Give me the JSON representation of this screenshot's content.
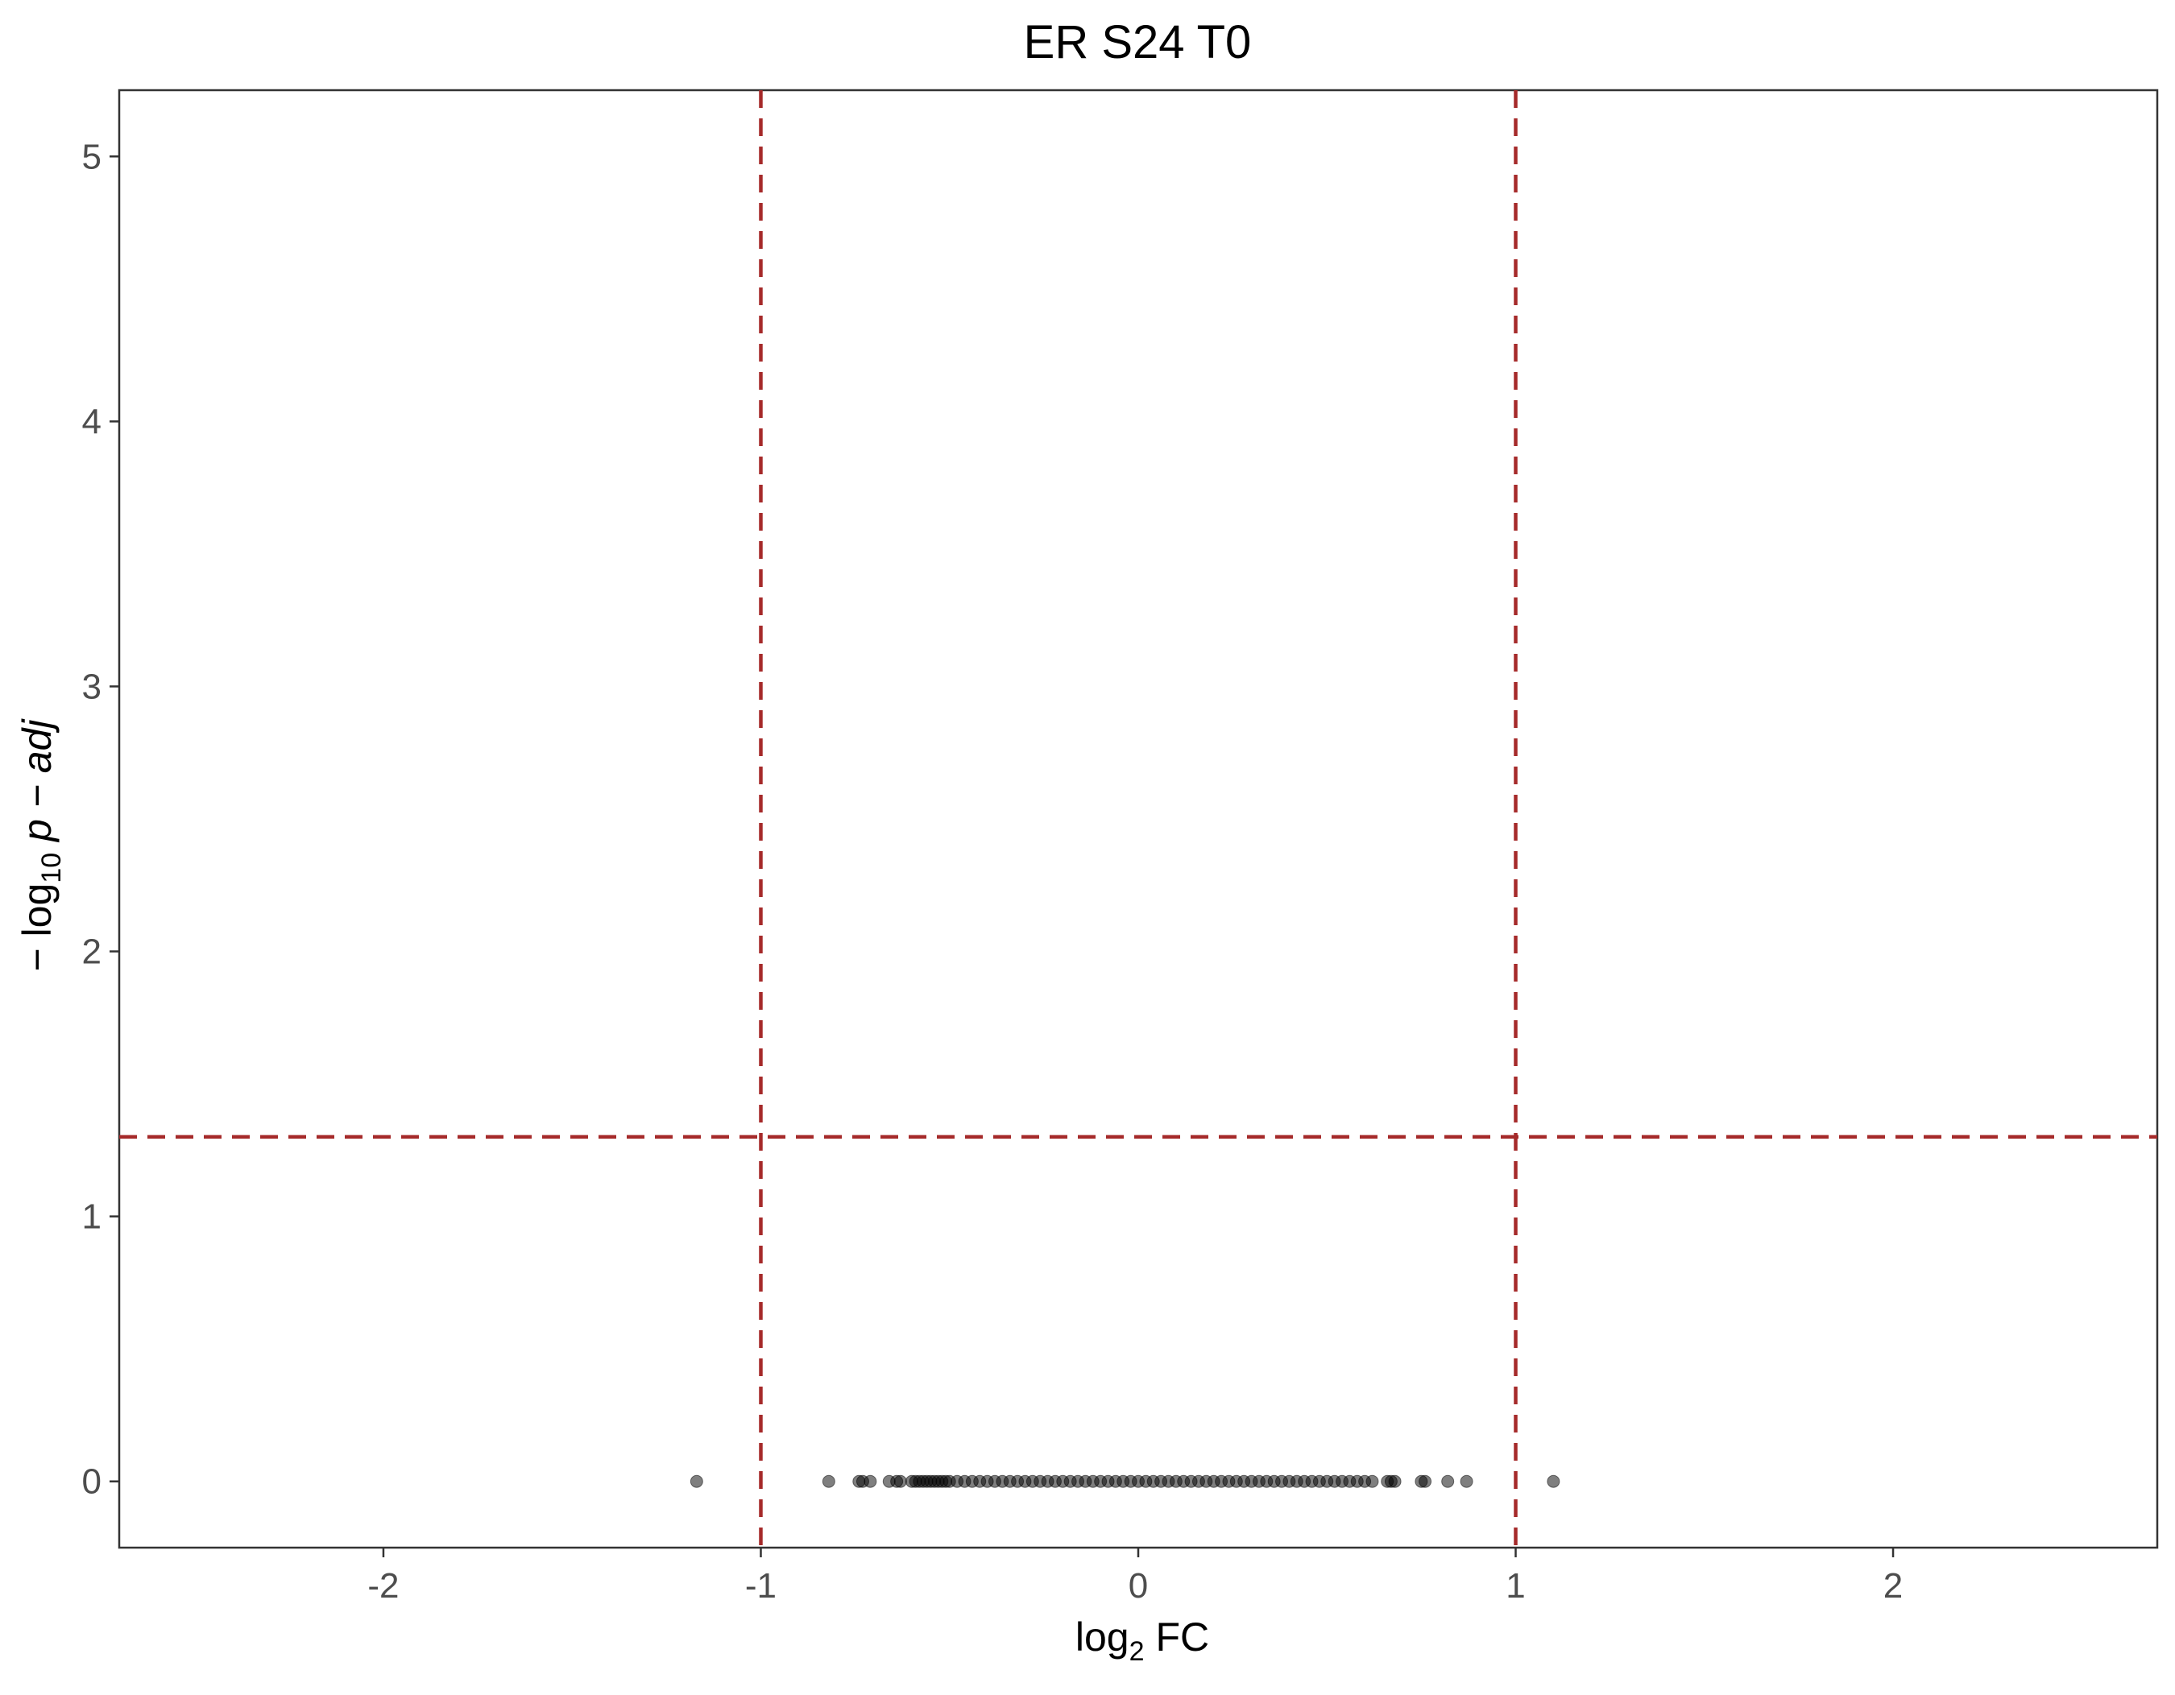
{
  "chart_data": {
    "type": "scatter",
    "title": "ER S24 T0",
    "xlabel": {
      "base": "log",
      "subscript": "2",
      "suffix": " FC"
    },
    "ylabel": {
      "prefix": "− log",
      "subscript": "10",
      "italic": " p − adj"
    },
    "xlim": [
      -2.7,
      2.7
    ],
    "ylim": [
      -0.25,
      5.25
    ],
    "x_ticks": [
      -2,
      -1,
      0,
      1,
      2
    ],
    "x_tick_labels": [
      "-2",
      "-1",
      "0",
      "1",
      "2"
    ],
    "y_ticks": [
      0,
      1,
      2,
      3,
      4,
      5
    ],
    "y_tick_labels": [
      "0",
      "1",
      "2",
      "3",
      "4",
      "5"
    ],
    "grid": false,
    "thresholds": {
      "log2fc": [
        -1,
        1
      ],
      "neg_log10_padj": 1.3,
      "color": "#a52a2a",
      "style": "dashed"
    },
    "point_color": "#000000",
    "point_alpha": 0.5,
    "series": [
      {
        "points": [
          {
            "x": -1.17,
            "y": 0
          },
          {
            "x": -0.82,
            "y": 0
          },
          {
            "x": -0.74,
            "y": 0
          },
          {
            "x": -0.73,
            "y": 0
          },
          {
            "x": -0.71,
            "y": 0
          },
          {
            "x": -0.66,
            "y": 0
          },
          {
            "x": -0.64,
            "y": 0
          },
          {
            "x": -0.63,
            "y": 0
          },
          {
            "x": -0.6,
            "y": 0
          },
          {
            "x": -0.59,
            "y": 0
          },
          {
            "x": -0.58,
            "y": 0
          },
          {
            "x": -0.57,
            "y": 0
          },
          {
            "x": -0.56,
            "y": 0
          },
          {
            "x": -0.55,
            "y": 0
          },
          {
            "x": -0.54,
            "y": 0
          },
          {
            "x": -0.53,
            "y": 0
          },
          {
            "x": -0.52,
            "y": 0
          },
          {
            "x": -0.51,
            "y": 0
          },
          {
            "x": -0.5,
            "y": 0
          },
          {
            "x": -0.48,
            "y": 0
          },
          {
            "x": -0.46,
            "y": 0
          },
          {
            "x": -0.44,
            "y": 0
          },
          {
            "x": -0.42,
            "y": 0
          },
          {
            "x": -0.4,
            "y": 0
          },
          {
            "x": -0.38,
            "y": 0
          },
          {
            "x": -0.36,
            "y": 0
          },
          {
            "x": -0.34,
            "y": 0
          },
          {
            "x": -0.32,
            "y": 0
          },
          {
            "x": -0.3,
            "y": 0
          },
          {
            "x": -0.28,
            "y": 0
          },
          {
            "x": -0.26,
            "y": 0
          },
          {
            "x": -0.24,
            "y": 0
          },
          {
            "x": -0.22,
            "y": 0
          },
          {
            "x": -0.2,
            "y": 0
          },
          {
            "x": -0.18,
            "y": 0
          },
          {
            "x": -0.16,
            "y": 0
          },
          {
            "x": -0.14,
            "y": 0
          },
          {
            "x": -0.12,
            "y": 0
          },
          {
            "x": -0.1,
            "y": 0
          },
          {
            "x": -0.08,
            "y": 0
          },
          {
            "x": -0.06,
            "y": 0
          },
          {
            "x": -0.04,
            "y": 0
          },
          {
            "x": -0.02,
            "y": 0
          },
          {
            "x": 0,
            "y": 0
          },
          {
            "x": 0.02,
            "y": 0
          },
          {
            "x": 0.04,
            "y": 0
          },
          {
            "x": 0.06,
            "y": 0
          },
          {
            "x": 0.08,
            "y": 0
          },
          {
            "x": 0.1,
            "y": 0
          },
          {
            "x": 0.12,
            "y": 0
          },
          {
            "x": 0.14,
            "y": 0
          },
          {
            "x": 0.16,
            "y": 0
          },
          {
            "x": 0.18,
            "y": 0
          },
          {
            "x": 0.2,
            "y": 0
          },
          {
            "x": 0.22,
            "y": 0
          },
          {
            "x": 0.24,
            "y": 0
          },
          {
            "x": 0.26,
            "y": 0
          },
          {
            "x": 0.28,
            "y": 0
          },
          {
            "x": 0.3,
            "y": 0
          },
          {
            "x": 0.32,
            "y": 0
          },
          {
            "x": 0.34,
            "y": 0
          },
          {
            "x": 0.36,
            "y": 0
          },
          {
            "x": 0.38,
            "y": 0
          },
          {
            "x": 0.4,
            "y": 0
          },
          {
            "x": 0.42,
            "y": 0
          },
          {
            "x": 0.44,
            "y": 0
          },
          {
            "x": 0.46,
            "y": 0
          },
          {
            "x": 0.48,
            "y": 0
          },
          {
            "x": 0.5,
            "y": 0
          },
          {
            "x": 0.52,
            "y": 0
          },
          {
            "x": 0.54,
            "y": 0
          },
          {
            "x": 0.56,
            "y": 0
          },
          {
            "x": 0.58,
            "y": 0
          },
          {
            "x": 0.6,
            "y": 0
          },
          {
            "x": 0.62,
            "y": 0
          },
          {
            "x": 0.66,
            "y": 0
          },
          {
            "x": 0.67,
            "y": 0
          },
          {
            "x": 0.68,
            "y": 0
          },
          {
            "x": 0.75,
            "y": 0
          },
          {
            "x": 0.76,
            "y": 0
          },
          {
            "x": 0.82,
            "y": 0
          },
          {
            "x": 0.87,
            "y": 0
          },
          {
            "x": 1.1,
            "y": 0
          }
        ]
      }
    ]
  }
}
